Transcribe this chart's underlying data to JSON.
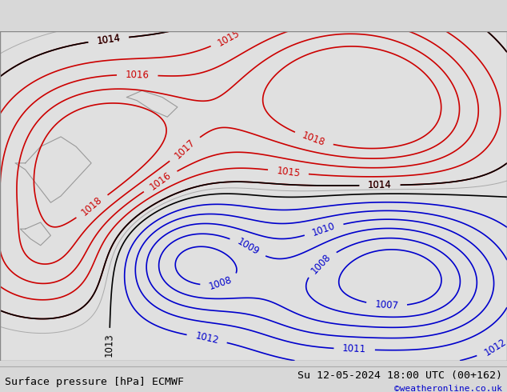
{
  "title_left": "Surface pressure [hPa] ECMWF",
  "title_right": "Su 12-05-2024 18:00 UTC (00+162)",
  "credit": "©weatheronline.co.uk",
  "bg_color": "#f0f0f0",
  "map_bg": "#e8e8e8",
  "green_light": "#c8e6a0",
  "green_mid": "#a8d878",
  "white_region": "#f8f8f8",
  "gray_region": "#d0d0d0",
  "contour_red": "#cc0000",
  "contour_black": "#000000",
  "contour_blue": "#0000cc",
  "contour_gray": "#888888",
  "label_fontsize": 8.5,
  "footer_fontsize": 9.5,
  "credit_fontsize": 8,
  "credit_color": "#0000cc",
  "figsize": [
    6.34,
    4.9
  ],
  "dpi": 100
}
